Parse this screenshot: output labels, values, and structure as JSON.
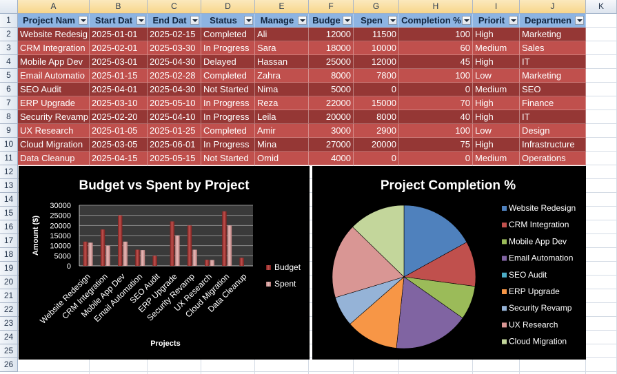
{
  "columns": [
    "A",
    "B",
    "C",
    "D",
    "E",
    "F",
    "G",
    "H",
    "I",
    "J",
    "K"
  ],
  "rows": [
    "1",
    "2",
    "3",
    "4",
    "5",
    "6",
    "7",
    "8",
    "9",
    "10",
    "11",
    "12",
    "13",
    "14",
    "15",
    "16",
    "17",
    "18",
    "19",
    "20",
    "21",
    "22",
    "23",
    "24",
    "25",
    "26"
  ],
  "table": {
    "headers": [
      "Project Nam",
      "Start Dat",
      "End Dat",
      "Status",
      "Manage",
      "Budge",
      "Spen",
      "Completion %",
      "Priorit",
      "Departmen"
    ],
    "rows": [
      [
        "Website Redesig",
        "2025-01-01",
        "2025-02-15",
        "Completed",
        "Ali",
        "12000",
        "11500",
        "100",
        "High",
        "Marketing"
      ],
      [
        "CRM Integration",
        "2025-02-01",
        "2025-03-30",
        "In Progress",
        "Sara",
        "18000",
        "10000",
        "60",
        "Medium",
        "Sales"
      ],
      [
        "Mobile App Dev",
        "2025-03-01",
        "2025-04-30",
        "Delayed",
        "Hassan",
        "25000",
        "12000",
        "45",
        "High",
        "IT"
      ],
      [
        "Email Automatio",
        "2025-01-15",
        "2025-02-28",
        "Completed",
        "Zahra",
        "8000",
        "7800",
        "100",
        "Low",
        "Marketing"
      ],
      [
        "SEO Audit",
        "2025-04-01",
        "2025-04-30",
        "Not Started",
        "Nima",
        "5000",
        "0",
        "0",
        "Medium",
        "SEO"
      ],
      [
        "ERP Upgrade",
        "2025-03-10",
        "2025-05-10",
        "In Progress",
        "Reza",
        "22000",
        "15000",
        "70",
        "High",
        "Finance"
      ],
      [
        "Security Revamp",
        "2025-02-20",
        "2025-04-10",
        "In Progress",
        "Leila",
        "20000",
        "8000",
        "40",
        "High",
        "IT"
      ],
      [
        "UX Research",
        "2025-01-05",
        "2025-01-25",
        "Completed",
        "Amir",
        "3000",
        "2900",
        "100",
        "Low",
        "Design"
      ],
      [
        "Cloud Migration",
        "2025-03-05",
        "2025-06-01",
        "In Progress",
        "Mina",
        "27000",
        "20000",
        "75",
        "High",
        "Infrastructure"
      ],
      [
        "Data Cleanup",
        "2025-04-15",
        "2025-05-15",
        "Not Started",
        "Omid",
        "4000",
        "0",
        "0",
        "Medium",
        "Operations"
      ]
    ]
  },
  "colors": {
    "header_fill": "#8db4e2",
    "band_dark": "#953735",
    "band_light": "#c0504d",
    "chart_bg": "#000000",
    "budget": "#c0504d",
    "spent": "#e6b9b8",
    "pie": [
      "#4f81bd",
      "#c0504d",
      "#9bbb59",
      "#8064a2",
      "#4bacc6",
      "#f79646",
      "#95b3d7",
      "#d99694",
      "#c3d69b"
    ]
  },
  "chart_data": [
    {
      "type": "bar",
      "title": "Budget vs Spent by Project",
      "xlabel": "Projects",
      "ylabel": "Amount ($)",
      "categories": [
        "Website Redesign",
        "CRM Integration",
        "Mobile App Dev",
        "Email Automation",
        "SEO Audit",
        "ERP Upgrade",
        "Security Revamp",
        "UX Research",
        "Cloud Migration",
        "Data Cleanup"
      ],
      "series": [
        {
          "name": "Budget",
          "values": [
            12000,
            18000,
            25000,
            8000,
            5000,
            22000,
            20000,
            3000,
            27000,
            4000
          ]
        },
        {
          "name": "Spent",
          "values": [
            11500,
            10000,
            12000,
            7800,
            0,
            15000,
            8000,
            2900,
            20000,
            0
          ]
        }
      ],
      "yticks": [
        "0",
        "5000",
        "10000",
        "15000",
        "20000",
        "25000",
        "30000"
      ],
      "ylim": [
        0,
        30000
      ],
      "grid": true,
      "legend": "right"
    },
    {
      "type": "pie",
      "title": "Project Completion %",
      "labels": [
        "Website Redesign",
        "CRM Integration",
        "Mobile App Dev",
        "Email Automation",
        "SEO Audit",
        "ERP Upgrade",
        "Security Revamp",
        "UX Research",
        "Cloud Migration"
      ],
      "values": [
        100,
        60,
        45,
        100,
        0,
        70,
        40,
        100,
        75
      ],
      "legend": "right"
    }
  ]
}
